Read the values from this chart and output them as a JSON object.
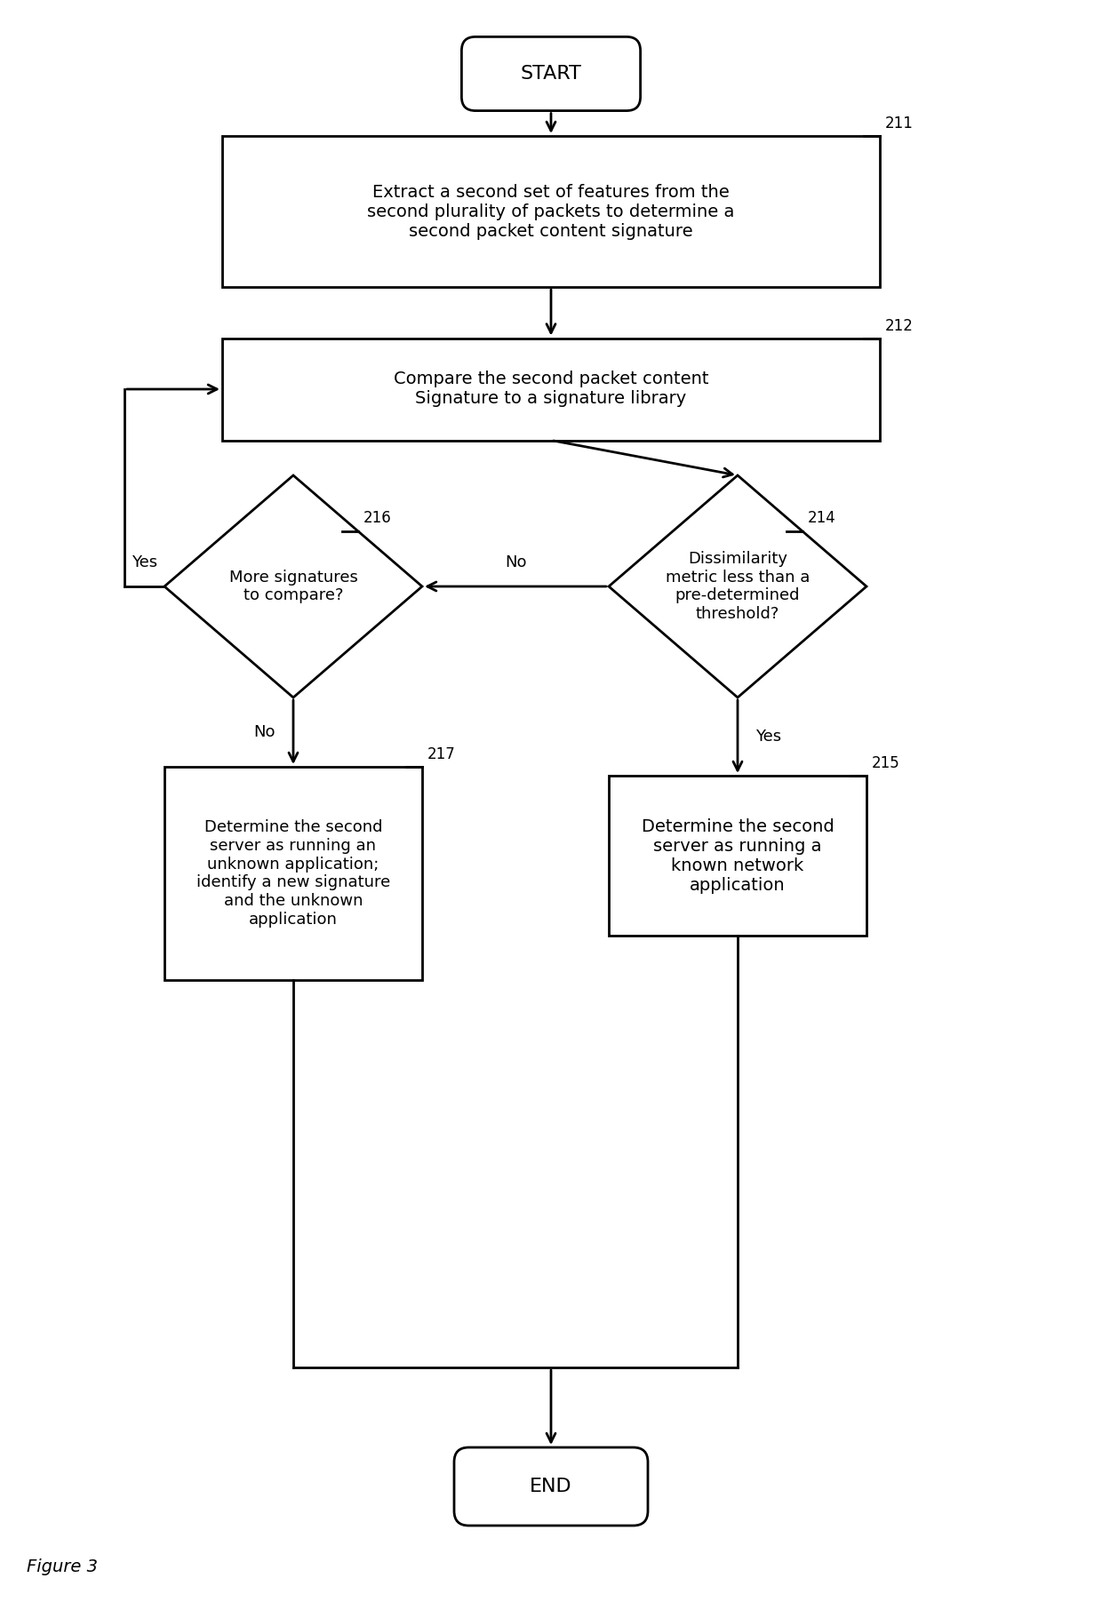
{
  "fig_width": 12.4,
  "fig_height": 18.03,
  "bg_color": "#ffffff",
  "line_color": "#000000",
  "text_color": "#000000",
  "figure_label": "Figure 3",
  "start_label": "START",
  "end_label": "END",
  "box211_text": "Extract a second set of features from the\nsecond plurality of packets to determine a\nsecond packet content signature",
  "box212_text": "Compare the second packet content\nSignature to a signature library",
  "diamond214_text": "Dissimilarity\nmetric less than a\npre-determined\nthreshold?",
  "diamond216_text": "More signatures\nto compare?",
  "box215_text": "Determine the second\nserver as running a\nknown network\napplication",
  "box217_text": "Determine the second\nserver as running an\nunknown application;\nidentify a new signature\nand the unknown\napplication",
  "ref211": "211",
  "ref212": "212",
  "ref214": "214",
  "ref215": "215",
  "ref216": "216",
  "ref217": "217"
}
